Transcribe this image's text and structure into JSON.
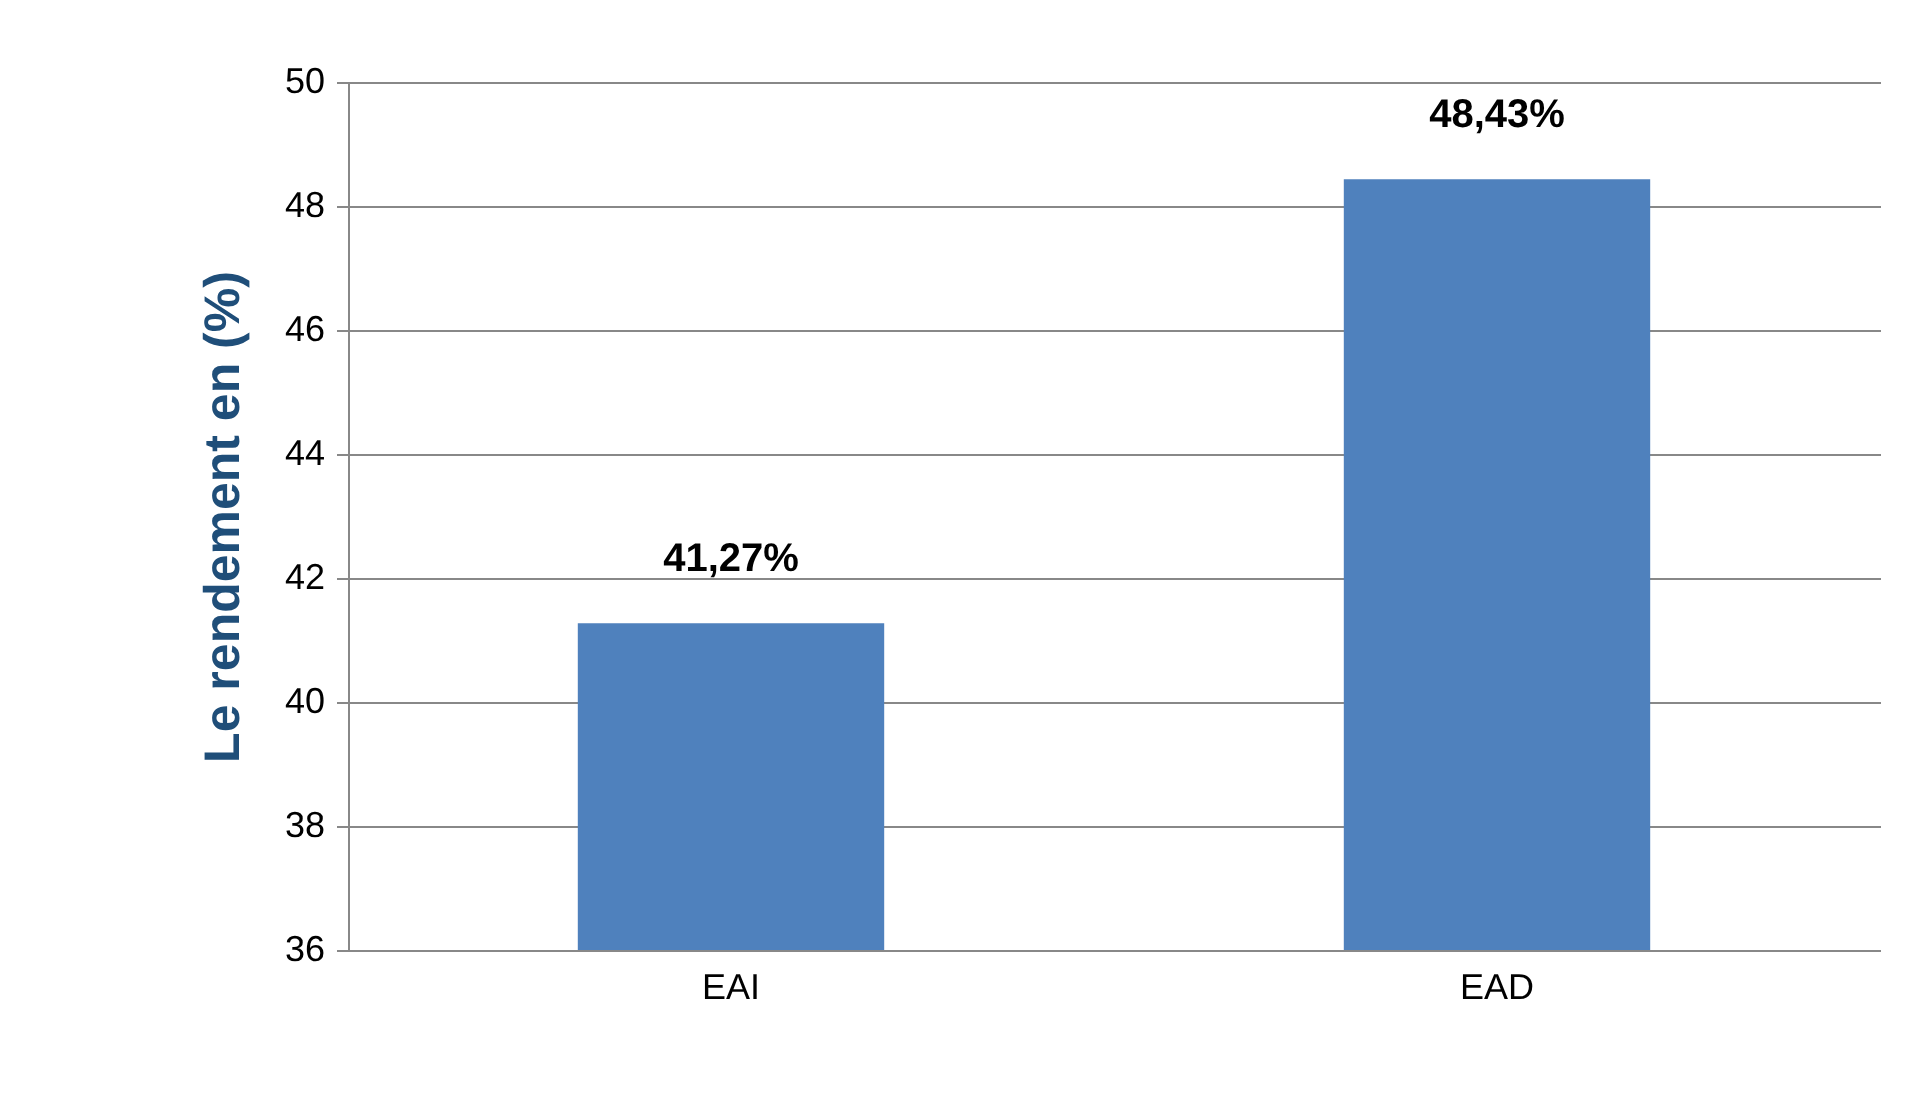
{
  "chart_data": {
    "type": "bar",
    "ylabel": "Le rendement en (%)",
    "categories": [
      "EAI",
      "EAD"
    ],
    "values": [
      41.27,
      48.43
    ],
    "color": "#4f81bd",
    "value_labels": [
      "41,27%",
      "48,43%"
    ],
    "ylim": [
      36,
      50
    ],
    "yticks": [
      36,
      38,
      40,
      42,
      44,
      46,
      48,
      50
    ],
    "grid": "y"
  }
}
